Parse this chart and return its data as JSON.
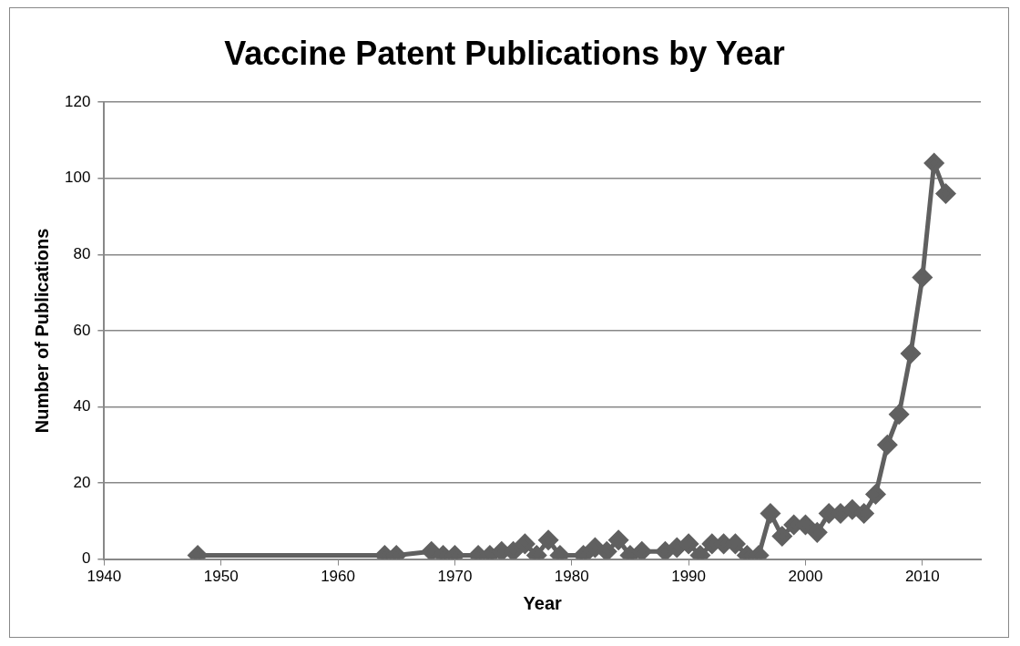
{
  "chart_data": {
    "type": "line",
    "title": "Vaccine Patent Publications by Year",
    "xlabel": "Year",
    "ylabel": "Number of Publications",
    "x": [
      1948,
      1964,
      1965,
      1968,
      1969,
      1970,
      1972,
      1973,
      1974,
      1975,
      1976,
      1977,
      1978,
      1979,
      1981,
      1982,
      1983,
      1984,
      1985,
      1986,
      1988,
      1989,
      1990,
      1991,
      1992,
      1993,
      1994,
      1995,
      1996,
      1997,
      1998,
      1999,
      2000,
      2001,
      2002,
      2003,
      2004,
      2005,
      2006,
      2007,
      2008,
      2009,
      2010,
      2011,
      2012
    ],
    "series": [
      {
        "color": "#606060",
        "values": [
          1,
          1,
          1,
          2,
          1,
          1,
          1,
          1,
          2,
          2,
          4,
          1,
          5,
          1,
          1,
          3,
          2,
          5,
          1,
          2,
          2,
          3,
          4,
          1,
          4,
          4,
          4,
          1,
          1,
          12,
          6,
          9,
          9,
          7,
          12,
          12,
          13,
          12,
          17,
          30,
          38,
          54,
          74,
          104,
          96
        ]
      }
    ],
    "xlim": [
      1940,
      2015
    ],
    "xticks": [
      1940,
      1950,
      1960,
      1970,
      1980,
      1990,
      2000,
      2010
    ],
    "ylim": [
      0,
      120
    ],
    "yticks": [
      0,
      20,
      40,
      60,
      80,
      100,
      120
    ],
    "grid": "y",
    "legend": false,
    "marker": "diamond",
    "line_style": "solid"
  }
}
